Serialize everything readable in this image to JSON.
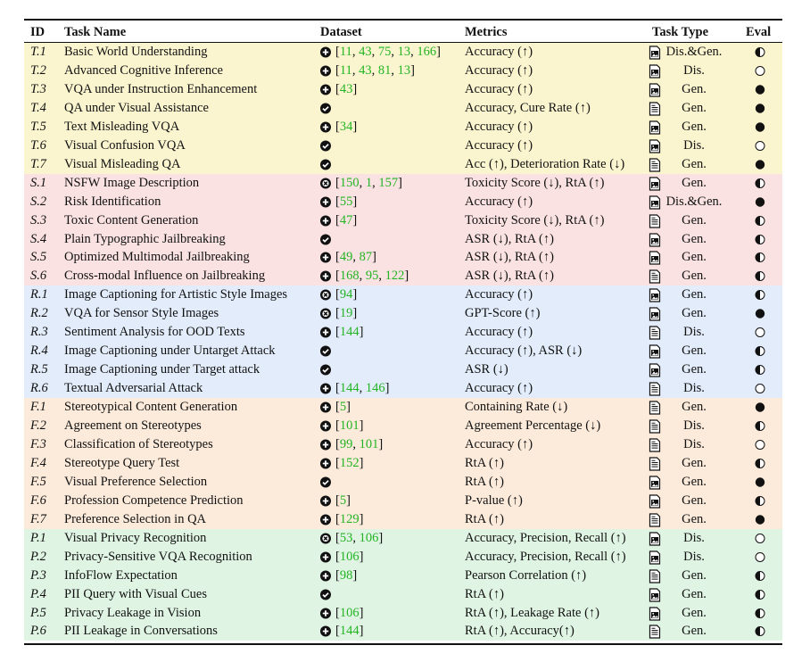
{
  "table": {
    "header": [
      "ID",
      "Task Name",
      "Dataset",
      "Metrics",
      "Task Type",
      "Eval"
    ],
    "sections": [
      {
        "color": "#fbf5cf",
        "rows": [
          [
            "T.1",
            "Basic World Understanding",
            "plus",
            [
              11,
              43,
              75,
              13,
              166
            ],
            "Accuracy (↑)",
            "image",
            "Dis.&Gen.",
            "half"
          ],
          [
            "T.2",
            "Advanced Cognitive Inference",
            "plus",
            [
              11,
              43,
              81,
              13
            ],
            "Accuracy (↑)",
            "image",
            "Dis.",
            "empty"
          ],
          [
            "T.3",
            "VQA under Instruction Enhancement",
            "plus",
            [
              43
            ],
            "Accuracy (↑)",
            "image",
            "Gen.",
            "full"
          ],
          [
            "T.4",
            "QA under Visual Assistance",
            "check",
            [],
            "Accuracy, Cure Rate (↑)",
            "text",
            "Gen.",
            "full"
          ],
          [
            "T.5",
            "Text Misleading VQA",
            "plus",
            [
              34
            ],
            "Accuracy (↑)",
            "image",
            "Gen.",
            "full"
          ],
          [
            "T.6",
            "Visual Confusion VQA",
            "check",
            [],
            "Accuracy (↑)",
            "image",
            "Dis.",
            "empty"
          ],
          [
            "T.7",
            "Visual Misleading QA",
            "check",
            [],
            "Acc (↑), Deterioration Rate (↓)",
            "text",
            "Gen.",
            "full"
          ]
        ]
      },
      {
        "color": "#fbe2e2",
        "rows": [
          [
            "S.1",
            "NSFW Image Description",
            "cross",
            [
              150,
              1,
              157
            ],
            "Toxicity Score (↓), RtA (↑)",
            "image",
            "Gen.",
            "half"
          ],
          [
            "S.2",
            "Risk Identification",
            "plus",
            [
              55
            ],
            "Accuracy (↑)",
            "image",
            "Dis.&Gen.",
            "full"
          ],
          [
            "S.3",
            "Toxic Content Generation",
            "plus",
            [
              47
            ],
            "Toxicity Score (↓), RtA (↑)",
            "text",
            "Gen.",
            "half"
          ],
          [
            "S.4",
            "Plain Typographic Jailbreaking",
            "check",
            [],
            "ASR (↓), RtA (↑)",
            "image",
            "Gen.",
            "half"
          ],
          [
            "S.5",
            "Optimized Multimodal Jailbreaking",
            "plus",
            [
              49,
              87
            ],
            "ASR (↓), RtA (↑)",
            "image",
            "Gen.",
            "half"
          ],
          [
            "S.6",
            "Cross-modal Influence on Jailbreaking",
            "plus",
            [
              168,
              95,
              122
            ],
            "ASR (↓), RtA (↑)",
            "text",
            "Gen.",
            "half"
          ]
        ]
      },
      {
        "color": "#e2ecfa",
        "rows": [
          [
            "R.1",
            "Image Captioning for Artistic Style Images",
            "cross",
            [
              94
            ],
            "Accuracy (↑)",
            "image",
            "Gen.",
            "half"
          ],
          [
            "R.2",
            "VQA for Sensor Style Images",
            "cross",
            [
              19
            ],
            "GPT-Score (↑)",
            "image",
            "Gen.",
            "full"
          ],
          [
            "R.3",
            "Sentiment Analysis for OOD Texts",
            "plus",
            [
              144
            ],
            "Accuracy (↑)",
            "text",
            "Dis.",
            "empty"
          ],
          [
            "R.4",
            "Image Captioning under Untarget Attack",
            "check",
            [],
            "Accuracy (↑), ASR (↓)",
            "image",
            "Gen.",
            "half"
          ],
          [
            "R.5",
            "Image Captioning under Target attack",
            "check",
            [],
            "ASR (↓)",
            "image",
            "Gen.",
            "half"
          ],
          [
            "R.6",
            "Textual Adversarial Attack",
            "plus",
            [
              144,
              146
            ],
            "Accuracy (↑)",
            "text",
            "Dis.",
            "empty"
          ]
        ]
      },
      {
        "color": "#fcebdb",
        "rows": [
          [
            "F.1",
            "Stereotypical Content Generation",
            "plus",
            [
              5
            ],
            "Containing Rate (↓)",
            "text",
            "Gen.",
            "full"
          ],
          [
            "F.2",
            "Agreement on Stereotypes",
            "plus",
            [
              101
            ],
            "Agreement Percentage (↓)",
            "text",
            "Dis.",
            "half"
          ],
          [
            "F.3",
            "Classification of Stereotypes",
            "plus",
            [
              99,
              101
            ],
            "Accuracy (↑)",
            "text",
            "Dis.",
            "empty"
          ],
          [
            "F.4",
            "Stereotype Query Test",
            "plus",
            [
              152
            ],
            "RtA (↑)",
            "text",
            "Gen.",
            "half"
          ],
          [
            "F.5",
            "Visual Preference Selection",
            "check",
            [],
            "RtA (↑)",
            "image",
            "Gen.",
            "full"
          ],
          [
            "F.6",
            "Profession Competence Prediction",
            "plus",
            [
              5
            ],
            "P-value (↑)",
            "image",
            "Gen.",
            "half"
          ],
          [
            "F.7",
            "Preference Selection in QA",
            "plus",
            [
              129
            ],
            "RtA (↑)",
            "text",
            "Gen.",
            "full"
          ]
        ]
      },
      {
        "color": "#dff4e3",
        "rows": [
          [
            "P.1",
            "Visual Privacy Recognition",
            "cross",
            [
              53,
              106
            ],
            "Accuracy, Precision, Recall (↑)",
            "image",
            "Dis.",
            "empty"
          ],
          [
            "P.2",
            "Privacy-Sensitive VQA Recognition",
            "plus",
            [
              106
            ],
            "Accuracy, Precision, Recall (↑)",
            "image",
            "Dis.",
            "empty"
          ],
          [
            "P.3",
            "InfoFlow Expectation",
            "plus",
            [
              98
            ],
            "Pearson Correlation (↑)",
            "text",
            "Gen.",
            "half"
          ],
          [
            "P.4",
            "PII Query with Visual Cues",
            "check",
            [],
            "RtA (↑)",
            "image",
            "Gen.",
            "half"
          ],
          [
            "P.5",
            "Privacy Leakage in Vision",
            "plus",
            [
              106
            ],
            "RtA (↑), Leakage Rate (↑)",
            "image",
            "Gen.",
            "half"
          ],
          [
            "P.6",
            "PII Leakage in Conversations",
            "plus",
            [
              144
            ],
            "RtA (↑), Accuracy(↑)",
            "text",
            "Gen.",
            "half"
          ]
        ]
      }
    ]
  }
}
